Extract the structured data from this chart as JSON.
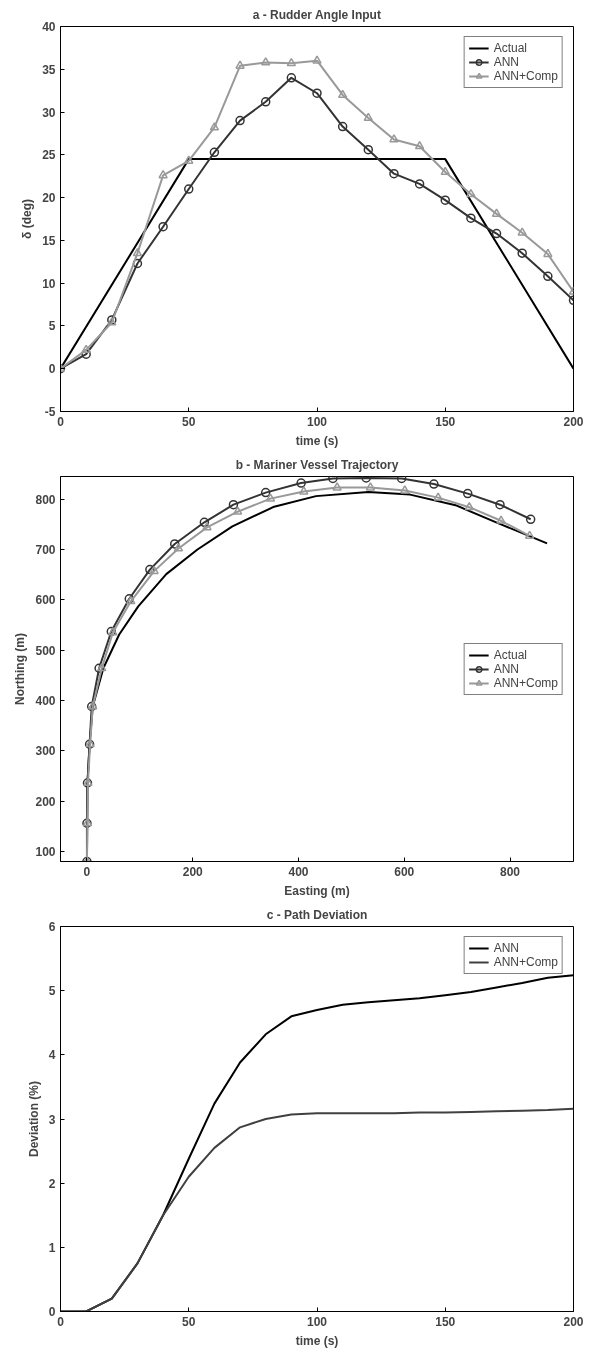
{
  "chart_data": [
    {
      "type": "line",
      "title": "a - Rudder Angle Input",
      "xlabel": "time (s)",
      "ylabel": "δ (deg)",
      "xlim": [
        0,
        200
      ],
      "ylim": [
        -5,
        40
      ],
      "xticks": [
        0,
        50,
        100,
        150,
        200
      ],
      "yticks": [
        -5,
        0,
        5,
        10,
        15,
        20,
        25,
        30,
        35,
        40
      ],
      "grid": false,
      "legend": "top right",
      "series": [
        {
          "name": "Actual",
          "color": "#000000",
          "marker": "none",
          "x": [
            0,
            50,
            150,
            200
          ],
          "values": [
            0,
            24.5,
            24.5,
            0
          ]
        },
        {
          "name": "ANN",
          "color": "#333333",
          "marker": "circle",
          "x": [
            0,
            10,
            20,
            30,
            40,
            50,
            60,
            70,
            80,
            90,
            100,
            110,
            120,
            130,
            140,
            150,
            160,
            170,
            180,
            190,
            200
          ],
          "values": [
            0,
            1.7,
            5.7,
            12.3,
            16.6,
            21,
            25.3,
            29,
            31.2,
            34,
            32.2,
            28.3,
            25.6,
            22.8,
            21.6,
            19.7,
            17.6,
            15.8,
            13.5,
            10.8,
            8
          ]
        },
        {
          "name": "ANN+Comp",
          "color": "#999999",
          "marker": "triangle",
          "x": [
            0,
            10,
            20,
            30,
            40,
            50,
            60,
            70,
            80,
            90,
            100,
            110,
            120,
            130,
            140,
            150,
            160,
            170,
            180,
            190,
            200
          ],
          "values": [
            0,
            2.2,
            5.4,
            13.5,
            22.6,
            24.3,
            28.2,
            35.4,
            35.8,
            35.7,
            36,
            32,
            29.3,
            26.8,
            26,
            23,
            20.4,
            18.1,
            15.9,
            13.4,
            9
          ]
        }
      ]
    },
    {
      "type": "line",
      "title": "b - Mariner Vessel Trajectory",
      "xlabel": "Easting (m)",
      "ylabel": "Northing (m)",
      "xlim": [
        -50,
        920
      ],
      "ylim": [
        80,
        845
      ],
      "xticks": [
        0,
        200,
        400,
        600,
        800
      ],
      "yticks": [
        100,
        200,
        300,
        400,
        500,
        600,
        700,
        800
      ],
      "grid": false,
      "legend": "right",
      "series": [
        {
          "name": "Actual",
          "color": "#000000",
          "marker": "none",
          "x": [
            0,
            1,
            5,
            11,
            31,
            61,
            97,
            150,
            209,
            275,
            354,
            433,
            532,
            611,
            697,
            776,
            870
          ],
          "values": [
            80,
            236,
            313,
            388,
            464,
            531,
            587,
            651,
            700,
            746,
            785,
            806,
            814,
            809,
            788,
            753,
            712
          ]
        },
        {
          "name": "ANN",
          "color": "#333333",
          "marker": "circle",
          "x": [
            0,
            0,
            1,
            5,
            9,
            23,
            46,
            80,
            119,
            166,
            222,
            277,
            338,
            405,
            465,
            528,
            595,
            656,
            720,
            781,
            839
          ],
          "values": [
            80,
            156,
            236,
            313,
            388,
            464,
            537,
            602,
            660,
            711,
            754,
            789,
            813,
            832,
            841,
            842,
            841,
            830,
            811,
            789,
            760
          ]
        },
        {
          "name": "ANN+Comp",
          "color": "#999999",
          "marker": "triangle",
          "x": [
            0,
            1,
            2,
            6,
            11,
            28,
            49,
            83,
            127,
            173,
            227,
            285,
            347,
            410,
            473,
            536,
            601,
            664,
            723,
            783,
            837
          ],
          "values": [
            80,
            156,
            236,
            313,
            388,
            464,
            535,
            597,
            657,
            702,
            744,
            775,
            801,
            815,
            823,
            823,
            817,
            803,
            784,
            757,
            727
          ]
        }
      ]
    },
    {
      "type": "line",
      "title": "c - Path Deviation",
      "xlabel": "time (s)",
      "ylabel": "Deviation (%)",
      "xlim": [
        0,
        200
      ],
      "ylim": [
        0,
        6
      ],
      "xticks": [
        0,
        50,
        100,
        150,
        200
      ],
      "yticks": [
        0,
        1,
        2,
        3,
        4,
        5,
        6
      ],
      "grid": false,
      "legend": "top right",
      "series": [
        {
          "name": "ANN",
          "color": "#000000",
          "x": [
            0,
            10,
            20,
            30,
            40,
            50,
            60,
            70,
            80,
            90,
            100,
            110,
            120,
            130,
            140,
            150,
            160,
            170,
            180,
            190,
            200
          ],
          "values": [
            0,
            0,
            0.2,
            0.75,
            1.5,
            2.38,
            3.24,
            3.88,
            4.32,
            4.6,
            4.7,
            4.78,
            4.82,
            4.85,
            4.88,
            4.93,
            4.98,
            5.05,
            5.12,
            5.2,
            5.24
          ]
        },
        {
          "name": "ANN+Comp",
          "color": "#404040",
          "x": [
            0,
            10,
            20,
            30,
            40,
            50,
            60,
            70,
            80,
            90,
            100,
            110,
            120,
            130,
            140,
            150,
            160,
            170,
            180,
            190,
            200
          ],
          "values": [
            0,
            0,
            0.2,
            0.75,
            1.5,
            2.1,
            2.55,
            2.87,
            3.0,
            3.07,
            3.09,
            3.09,
            3.09,
            3.09,
            3.1,
            3.1,
            3.11,
            3.12,
            3.13,
            3.14,
            3.16
          ]
        }
      ]
    }
  ]
}
